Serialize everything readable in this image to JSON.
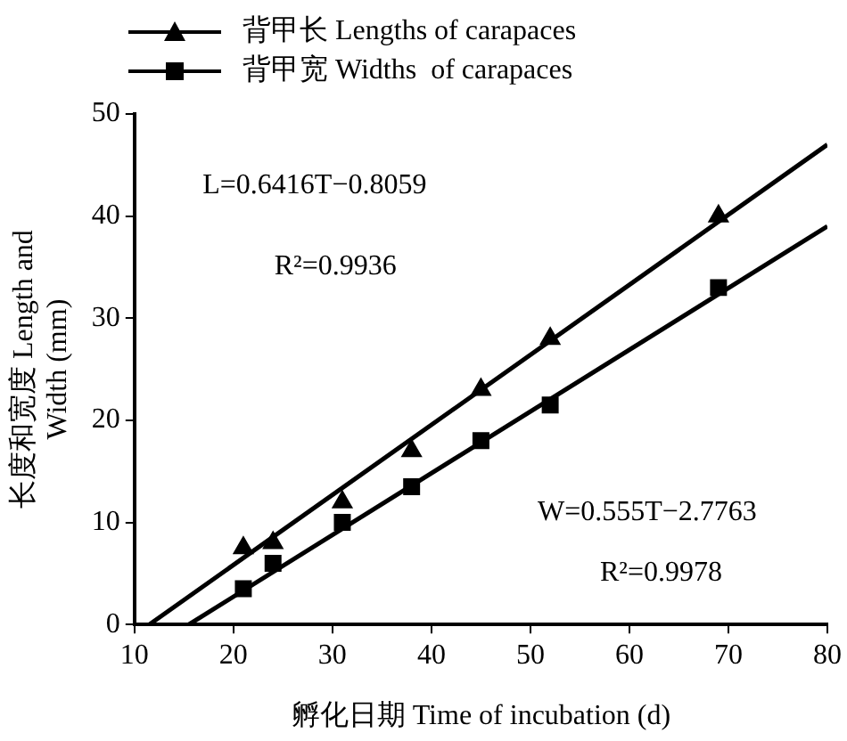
{
  "chart_data": {
    "type": "scatter",
    "xlabel": "孵化日期 Time of incubation (d)",
    "ylabel": "长度和宽度 Length and\nWidth (mm)",
    "series": [
      {
        "name": "背甲长 Lengths of carapaces",
        "color": "#000000",
        "marker": "triangle",
        "x": [
          21,
          24,
          31,
          38,
          45,
          52,
          69
        ],
        "values": [
          7.5,
          8,
          12,
          17,
          23,
          28,
          40
        ]
      },
      {
        "name": "背甲宽 Widths  of carapaces",
        "color": "#000000",
        "marker": "square",
        "x": [
          21,
          24,
          31,
          38,
          45,
          52,
          69
        ],
        "values": [
          3.5,
          6,
          10,
          13.5,
          18,
          21.5,
          33
        ]
      },
      {
        "type": "line",
        "color": "#000000",
        "x": [
          11.5,
          80
        ],
        "values": [
          0,
          47
        ]
      },
      {
        "type": "line",
        "color": "#000000",
        "x": [
          15.5,
          80
        ],
        "values": [
          0,
          39
        ]
      }
    ],
    "annotations": [
      "L=0.6416T−0.8059",
      "R²=0.9936",
      "W=0.555T−2.7763",
      "R²=0.9978"
    ],
    "xlim": [
      10,
      80
    ],
    "xticks": [
      10,
      20,
      30,
      40,
      50,
      60,
      70,
      80
    ],
    "ylim": [
      0,
      50
    ],
    "yticks": [
      0,
      10,
      20,
      30,
      40,
      50
    ],
    "grid": false,
    "legend": "top"
  }
}
